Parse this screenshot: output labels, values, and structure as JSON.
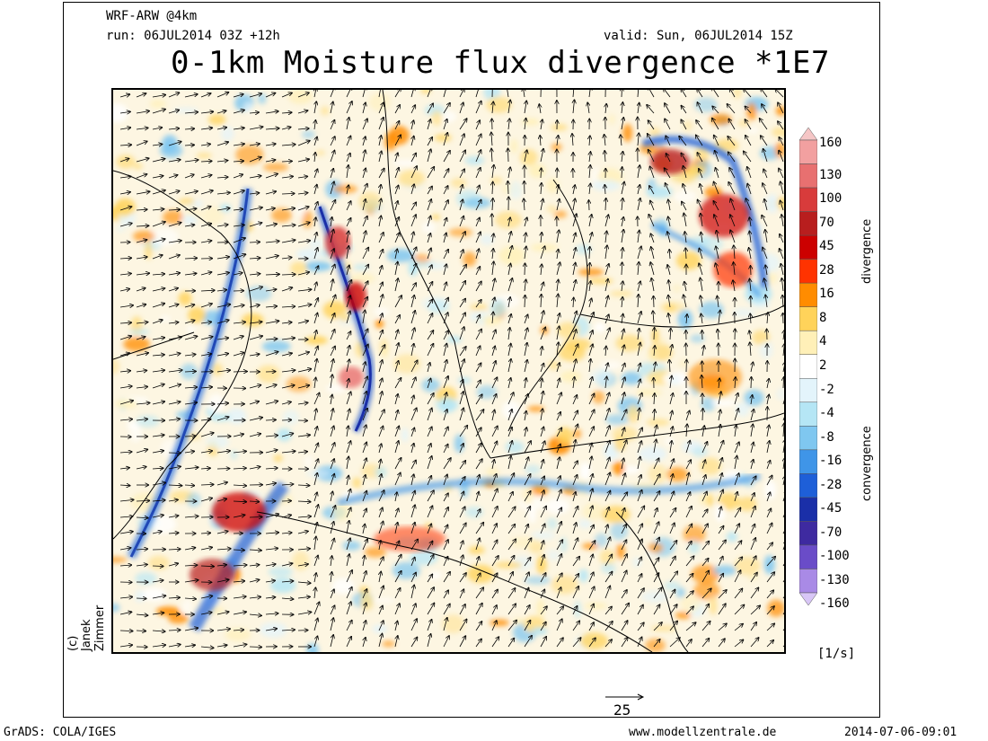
{
  "header": {
    "model": "WRF-ARW @4km",
    "run": "run: 06JUL2014 03Z +12h",
    "valid": "valid: Sun, 06JUL2014 15Z",
    "title": "0-1km Moisture flux divergence *1E7"
  },
  "credit": "(c) Janek Zimmer",
  "colorbar": {
    "levels": [
      "160",
      "130",
      "100",
      "70",
      "45",
      "28",
      "16",
      "8",
      "4",
      "2",
      "-2",
      "-4",
      "-8",
      "-16",
      "-28",
      "-45",
      "-70",
      "-100",
      "-130",
      "-160"
    ],
    "colors": [
      "#f5c6c6",
      "#f2a0a0",
      "#e87070",
      "#d83b3b",
      "#b81e1e",
      "#cc0000",
      "#ff3300",
      "#ff8c00",
      "#ffd35a",
      "#fff0b8",
      "#ffffff",
      "#e3f4fb",
      "#b5e6f5",
      "#7fc7f0",
      "#3f95e8",
      "#1e5fd8",
      "#1a2fa8",
      "#3e2aa0",
      "#6a4cc8",
      "#a98ae6",
      "#d8c6f6"
    ],
    "divergence_label": "divergence",
    "convergence_label": "convergence",
    "unit": "[1/s]"
  },
  "reference_vector": "25",
  "footer": {
    "grads": "GrADS: COLA/IGES",
    "site": "www.modellzentrale.de",
    "timestamp": "2014-07-06-09:01"
  }
}
